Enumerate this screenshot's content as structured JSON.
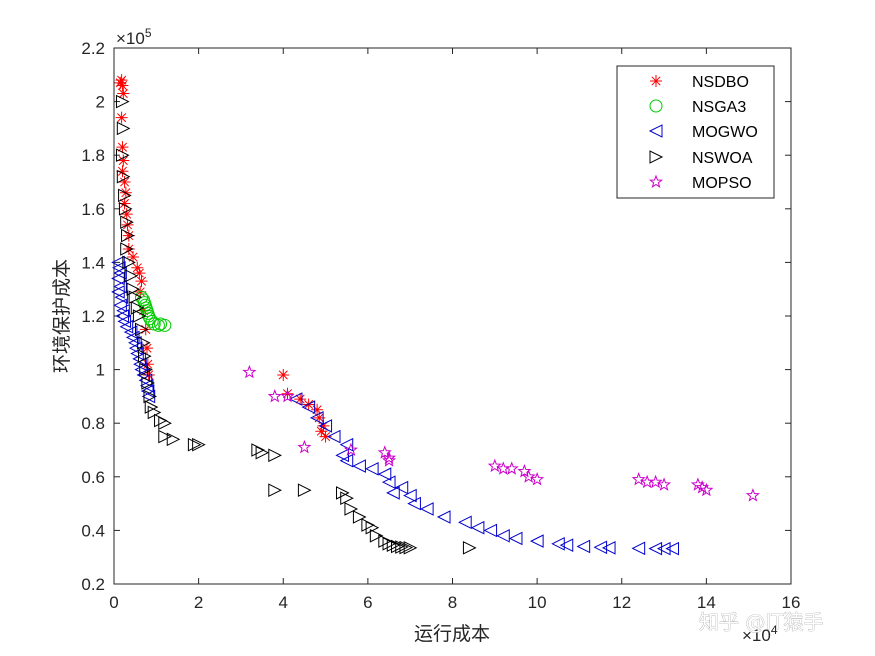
{
  "watermark": "知乎 @IT猿手",
  "chart_data": {
    "type": "scatter",
    "xlabel": "运行成本",
    "ylabel": "环境保护成本",
    "x_exponent": "×10",
    "x_exponent_power": "4",
    "y_exponent": "×10",
    "y_exponent_power": "5",
    "xlim": [
      0,
      16
    ],
    "ylim": [
      0.2,
      2.2
    ],
    "xticks": [
      0,
      2,
      4,
      6,
      8,
      10,
      12,
      14,
      16
    ],
    "yticks": [
      0.2,
      0.4,
      0.6,
      0.8,
      1,
      1.2,
      1.4,
      1.6,
      1.8,
      2,
      2.2
    ],
    "xtick_labels": [
      "0",
      "2",
      "4",
      "6",
      "8",
      "10",
      "12",
      "14",
      "16"
    ],
    "ytick_labels": [
      "0.2",
      "0.4",
      "0.6",
      "0.8",
      "1",
      "1.2",
      "1.4",
      "1.6",
      "1.8",
      "2",
      "2.2"
    ],
    "grid": false,
    "legend_position": "top-right",
    "series": [
      {
        "name": "NSDBO",
        "marker": "asterisk",
        "color": "#ff0000",
        "points": [
          [
            0.18,
            2.08
          ],
          [
            0.15,
            2.07
          ],
          [
            0.2,
            2.06
          ],
          [
            0.22,
            2.03
          ],
          [
            0.18,
            1.94
          ],
          [
            0.2,
            1.83
          ],
          [
            0.22,
            1.78
          ],
          [
            0.2,
            1.74
          ],
          [
            0.25,
            1.7
          ],
          [
            0.28,
            1.66
          ],
          [
            0.25,
            1.62
          ],
          [
            0.3,
            1.58
          ],
          [
            0.32,
            1.54
          ],
          [
            0.35,
            1.5
          ],
          [
            0.35,
            1.45
          ],
          [
            0.45,
            1.42
          ],
          [
            0.55,
            1.38
          ],
          [
            0.6,
            1.36
          ],
          [
            0.65,
            1.33
          ],
          [
            0.62,
            1.29
          ],
          [
            0.7,
            1.22
          ],
          [
            0.75,
            1.15
          ],
          [
            0.78,
            1.08
          ],
          [
            0.8,
            1.02
          ],
          [
            0.82,
            0.98
          ],
          [
            4.0,
            0.98
          ],
          [
            4.1,
            0.91
          ],
          [
            4.4,
            0.89
          ],
          [
            4.6,
            0.87
          ],
          [
            4.8,
            0.85
          ],
          [
            4.85,
            0.82
          ],
          [
            4.95,
            0.79
          ],
          [
            4.9,
            0.77
          ],
          [
            5.0,
            0.75
          ]
        ]
      },
      {
        "name": "NSGA3",
        "marker": "circle",
        "color": "#00cc00",
        "points": [
          [
            0.65,
            1.27
          ],
          [
            0.7,
            1.26
          ],
          [
            0.72,
            1.25
          ],
          [
            0.74,
            1.24
          ],
          [
            0.76,
            1.23
          ],
          [
            0.78,
            1.22
          ],
          [
            0.8,
            1.21
          ],
          [
            0.82,
            1.2
          ],
          [
            0.85,
            1.19
          ],
          [
            0.9,
            1.18
          ],
          [
            0.95,
            1.17
          ],
          [
            1.05,
            1.165
          ],
          [
            1.1,
            1.17
          ],
          [
            1.2,
            1.165
          ]
        ]
      },
      {
        "name": "MOGWO",
        "marker": "triangle-left",
        "color": "#0000cc",
        "points": [
          [
            0.1,
            1.4
          ],
          [
            0.12,
            1.38
          ],
          [
            0.15,
            1.36
          ],
          [
            0.1,
            1.34
          ],
          [
            0.15,
            1.31
          ],
          [
            0.1,
            1.29
          ],
          [
            0.18,
            1.27
          ],
          [
            0.15,
            1.24
          ],
          [
            0.22,
            1.22
          ],
          [
            0.2,
            1.2
          ],
          [
            0.25,
            1.18
          ],
          [
            0.3,
            1.16
          ],
          [
            0.4,
            1.14
          ],
          [
            0.45,
            1.12
          ],
          [
            0.5,
            1.1
          ],
          [
            0.52,
            1.08
          ],
          [
            0.55,
            1.06
          ],
          [
            0.6,
            1.04
          ],
          [
            0.62,
            1.02
          ],
          [
            0.65,
            1.0
          ],
          [
            0.7,
            0.98
          ],
          [
            0.75,
            0.96
          ],
          [
            0.78,
            0.94
          ],
          [
            0.8,
            0.92
          ],
          [
            0.82,
            0.9
          ],
          [
            4.3,
            0.89
          ],
          [
            4.6,
            0.86
          ],
          [
            4.8,
            0.82
          ],
          [
            5.0,
            0.79
          ],
          [
            5.2,
            0.75
          ],
          [
            5.5,
            0.72
          ],
          [
            5.4,
            0.68
          ],
          [
            5.5,
            0.66
          ],
          [
            5.8,
            0.64
          ],
          [
            6.1,
            0.63
          ],
          [
            6.4,
            0.61
          ],
          [
            6.5,
            0.58
          ],
          [
            6.8,
            0.56
          ],
          [
            6.6,
            0.54
          ],
          [
            7.0,
            0.53
          ],
          [
            7.1,
            0.5
          ],
          [
            7.4,
            0.48
          ],
          [
            7.8,
            0.45
          ],
          [
            8.3,
            0.43
          ],
          [
            8.6,
            0.41
          ],
          [
            8.9,
            0.4
          ],
          [
            9.2,
            0.38
          ],
          [
            9.5,
            0.37
          ],
          [
            10.0,
            0.36
          ],
          [
            10.5,
            0.35
          ],
          [
            10.7,
            0.345
          ],
          [
            11.1,
            0.34
          ],
          [
            11.5,
            0.337
          ],
          [
            11.7,
            0.335
          ],
          [
            12.4,
            0.333
          ],
          [
            12.8,
            0.332
          ],
          [
            13.0,
            0.332
          ],
          [
            13.2,
            0.332
          ]
        ]
      },
      {
        "name": "NSWOA",
        "marker": "triangle-right",
        "color": "#000000",
        "points": [
          [
            0.2,
            2.0
          ],
          [
            0.22,
            1.9
          ],
          [
            0.2,
            1.8
          ],
          [
            0.22,
            1.72
          ],
          [
            0.25,
            1.65
          ],
          [
            0.27,
            1.6
          ],
          [
            0.3,
            1.55
          ],
          [
            0.32,
            1.5
          ],
          [
            0.3,
            1.45
          ],
          [
            0.35,
            1.4
          ],
          [
            0.4,
            1.35
          ],
          [
            0.45,
            1.3
          ],
          [
            0.5,
            1.27
          ],
          [
            0.55,
            1.23
          ],
          [
            0.6,
            1.2
          ],
          [
            0.65,
            1.15
          ],
          [
            0.7,
            1.1
          ],
          [
            0.72,
            1.05
          ],
          [
            0.75,
            1.0
          ],
          [
            0.8,
            0.95
          ],
          [
            0.85,
            0.9
          ],
          [
            0.88,
            0.86
          ],
          [
            0.95,
            0.84
          ],
          [
            1.1,
            0.81
          ],
          [
            1.2,
            0.8
          ],
          [
            1.2,
            0.75
          ],
          [
            1.4,
            0.74
          ],
          [
            1.9,
            0.72
          ],
          [
            2.0,
            0.72
          ],
          [
            3.4,
            0.7
          ],
          [
            3.5,
            0.69
          ],
          [
            3.8,
            0.68
          ],
          [
            3.8,
            0.55
          ],
          [
            4.5,
            0.55
          ],
          [
            5.4,
            0.54
          ],
          [
            5.5,
            0.52
          ],
          [
            5.6,
            0.48
          ],
          [
            5.8,
            0.45
          ],
          [
            6.0,
            0.42
          ],
          [
            6.1,
            0.41
          ],
          [
            6.2,
            0.38
          ],
          [
            6.4,
            0.36
          ],
          [
            6.5,
            0.35
          ],
          [
            6.6,
            0.345
          ],
          [
            6.7,
            0.34
          ],
          [
            6.8,
            0.338
          ],
          [
            6.9,
            0.336
          ],
          [
            7.0,
            0.335
          ],
          [
            8.4,
            0.335
          ]
        ]
      },
      {
        "name": "MOPSO",
        "marker": "pentagram",
        "color": "#cc00cc",
        "points": [
          [
            3.2,
            0.99
          ],
          [
            3.8,
            0.9
          ],
          [
            4.1,
            0.9
          ],
          [
            4.5,
            0.71
          ],
          [
            5.6,
            0.7
          ],
          [
            6.4,
            0.69
          ],
          [
            6.5,
            0.66
          ],
          [
            6.5,
            0.67
          ],
          [
            9.0,
            0.64
          ],
          [
            9.2,
            0.63
          ],
          [
            9.4,
            0.63
          ],
          [
            9.7,
            0.62
          ],
          [
            9.8,
            0.6
          ],
          [
            10.0,
            0.59
          ],
          [
            12.4,
            0.59
          ],
          [
            12.6,
            0.58
          ],
          [
            12.8,
            0.58
          ],
          [
            13.0,
            0.57
          ],
          [
            13.8,
            0.57
          ],
          [
            13.9,
            0.56
          ],
          [
            14.0,
            0.55
          ],
          [
            15.1,
            0.53
          ]
        ]
      }
    ]
  }
}
